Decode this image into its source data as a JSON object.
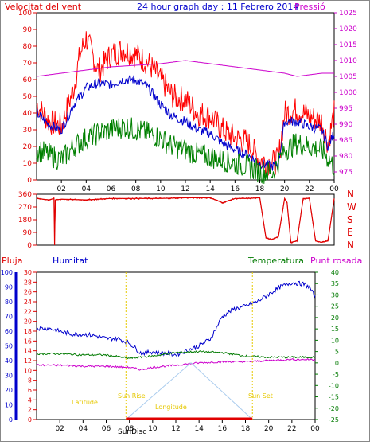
{
  "chart_data": [
    {
      "type": "line",
      "panel": "wind_pressure",
      "title": "24 hour graph day : 11 Febrero 2014",
      "left_label": "Velocitat del vent",
      "right_label": "Pressió",
      "x_ticks": [
        "02",
        "04",
        "06",
        "08",
        "10",
        "12",
        "14",
        "16",
        "18",
        "20",
        "22",
        "00"
      ],
      "y_left_ticks": [
        "0",
        "10",
        "20",
        "30",
        "40",
        "50",
        "60",
        "70",
        "80",
        "90",
        "100"
      ],
      "y_left_range": [
        0,
        100
      ],
      "y_right_ticks": [
        "975",
        "980",
        "985",
        "990",
        "995",
        "1000",
        "1005",
        "1010",
        "1015",
        "1020",
        "1025"
      ],
      "y_right_range": [
        972.5,
        1025
      ],
      "series": [
        {
          "name": "gust",
          "color": "#ff0000",
          "axis": "left",
          "x": [
            0,
            1,
            2,
            3,
            3.5,
            4,
            4.5,
            5,
            6,
            7,
            8,
            9,
            10,
            11,
            12,
            13,
            14,
            15,
            16,
            17,
            18,
            19,
            19.5,
            20,
            21,
            22,
            23,
            23.5,
            24
          ],
          "values": [
            45,
            35,
            32,
            55,
            75,
            85,
            75,
            65,
            75,
            78,
            75,
            70,
            60,
            50,
            48,
            40,
            38,
            30,
            25,
            23,
            12,
            10,
            12,
            40,
            42,
            38,
            35,
            22,
            40
          ]
        },
        {
          "name": "average",
          "color": "#0000cc",
          "axis": "left",
          "x": [
            0,
            1,
            2,
            3,
            4,
            5,
            6,
            7,
            8,
            9,
            10,
            11,
            12,
            13,
            14,
            15,
            16,
            17,
            18,
            19,
            19.5,
            20,
            21,
            22,
            23,
            23.5,
            24
          ],
          "values": [
            40,
            33,
            30,
            45,
            55,
            58,
            57,
            60,
            60,
            55,
            45,
            38,
            35,
            30,
            28,
            22,
            18,
            15,
            10,
            8,
            10,
            35,
            35,
            32,
            30,
            20,
            28
          ]
        },
        {
          "name": "minimum",
          "color": "#008000",
          "axis": "left",
          "x": [
            0,
            1,
            2,
            3,
            4,
            5,
            6,
            7,
            8,
            9,
            10,
            11,
            12,
            13,
            14,
            15,
            16,
            17,
            18,
            19,
            20,
            21,
            22,
            23,
            24
          ],
          "values": [
            18,
            15,
            12,
            20,
            25,
            28,
            30,
            32,
            30,
            28,
            25,
            20,
            18,
            15,
            14,
            12,
            10,
            8,
            5,
            4,
            18,
            22,
            20,
            18,
            8
          ]
        },
        {
          "name": "Pressió",
          "color": "#cc00cc",
          "axis": "right",
          "x": [
            0,
            2,
            4,
            6,
            8,
            10,
            12,
            14,
            16,
            18,
            20,
            21,
            22,
            23,
            24
          ],
          "values": [
            1005,
            1006,
            1007,
            1008,
            1008.5,
            1009,
            1010,
            1009,
            1008,
            1007,
            1006,
            1005,
            1005.5,
            1006,
            1006
          ]
        }
      ]
    },
    {
      "type": "line",
      "panel": "wind_direction",
      "y_left_ticks": [
        "0",
        "90",
        "180",
        "270",
        "360"
      ],
      "y_left_range": [
        0,
        360
      ],
      "direction_labels": [
        "N",
        "W",
        "S",
        "E",
        "N"
      ],
      "x_ticks": [
        "02",
        "04",
        "06",
        "08",
        "10",
        "12",
        "14",
        "16",
        "18",
        "20",
        "22",
        "00"
      ],
      "series": [
        {
          "name": "direction",
          "color": "#e00000",
          "x": [
            0,
            1,
            1.4,
            1.45,
            1.5,
            2,
            4,
            6,
            8,
            10,
            12,
            14,
            15,
            16,
            17,
            18,
            18.5,
            19,
            19.5,
            20,
            20.2,
            20.5,
            21,
            21.5,
            22,
            22.5,
            23,
            23.5,
            24
          ],
          "values": [
            330,
            320,
            330,
            0,
            320,
            325,
            320,
            330,
            330,
            330,
            335,
            335,
            300,
            330,
            330,
            335,
            50,
            40,
            60,
            330,
            300,
            20,
            30,
            330,
            330,
            30,
            20,
            30,
            330
          ]
        }
      ]
    },
    {
      "type": "line",
      "panel": "rain_humidity_temp",
      "labels": {
        "rain": "Pluja",
        "humidity": "Humitat",
        "temperature": "Temperatura",
        "dewpoint": "Punt rosada"
      },
      "x_ticks": [
        "02",
        "04",
        "06",
        "08",
        "10",
        "12",
        "14",
        "16",
        "18",
        "20",
        "22",
        "00"
      ],
      "rain_ticks": [
        "0",
        "2",
        "4",
        "6",
        "8",
        "10",
        "12",
        "14",
        "16",
        "18",
        "20",
        "22",
        "24",
        "26",
        "28",
        "30"
      ],
      "rain_range": [
        0,
        30
      ],
      "humidity_ticks": [
        "0",
        "10",
        "20",
        "30",
        "40",
        "50",
        "60",
        "70",
        "80",
        "90",
        "100"
      ],
      "humidity_range": [
        0,
        100
      ],
      "temp_ticks": [
        "-25",
        "-20",
        "-15",
        "-10",
        "-5",
        "0",
        "5",
        "10",
        "15",
        "20",
        "25",
        "30",
        "35",
        "40"
      ],
      "temp_range": [
        -25,
        40
      ],
      "sun_labels": {
        "sunrise": "Sun Rise",
        "sunset": "Sun Set",
        "latitude": "Latitude",
        "longitude": "Longitude",
        "sundisc": "SunDisc"
      },
      "series": [
        {
          "name": "Humitat",
          "color": "#0000cc",
          "axis": "humidity",
          "x": [
            0,
            1,
            2,
            3,
            4,
            5,
            6,
            7,
            8,
            9,
            10,
            11,
            12,
            13,
            14,
            15,
            16,
            17,
            18,
            19,
            20,
            21,
            22,
            23,
            23.5,
            24
          ],
          "values": [
            62,
            62,
            60,
            58,
            58,
            57,
            55,
            55,
            52,
            45,
            46,
            45,
            44,
            47,
            50,
            55,
            70,
            75,
            77,
            80,
            85,
            90,
            93,
            92,
            90,
            83
          ]
        },
        {
          "name": "Temperatura",
          "color": "#007a00",
          "axis": "temp",
          "x": [
            0,
            2,
            4,
            6,
            8,
            10,
            12,
            14,
            16,
            18,
            20,
            22,
            24
          ],
          "values": [
            4,
            4,
            3.5,
            3.5,
            2,
            3,
            4.5,
            5,
            4.5,
            3,
            2.5,
            2.5,
            2.5
          ]
        },
        {
          "name": "Punt rosada",
          "color": "#cc00cc",
          "axis": "temp",
          "x": [
            0,
            2,
            4,
            6,
            8,
            9,
            10,
            12,
            14,
            16,
            18,
            20,
            22,
            24
          ],
          "values": [
            -1,
            -1,
            -1.5,
            -1.5,
            -2,
            -3,
            -2,
            -1,
            0,
            0.5,
            0.5,
            1,
            1.5,
            1.5
          ]
        },
        {
          "name": "sun",
          "color": "#aaccee",
          "axis": "temp",
          "x": [
            7.7,
            13.3,
            18.6
          ],
          "values": [
            -25,
            0,
            -25
          ]
        },
        {
          "name": "rain",
          "color": "#e00000",
          "axis": "rain",
          "x": [
            0,
            24
          ],
          "values": [
            0,
            0
          ]
        }
      ]
    }
  ]
}
